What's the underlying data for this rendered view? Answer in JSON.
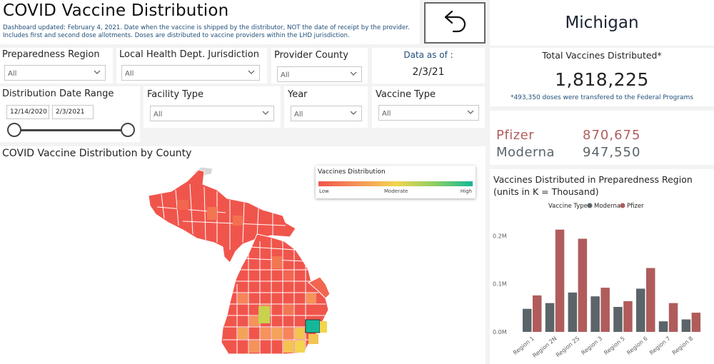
{
  "header": {
    "title": "COVID Vaccine Distribution",
    "subtitle": "Dashboard updated: February 4, 2021. Date when the vaccine is shipped by the distributor, NOT the date of receipt by the provider. Includes first and second dose allotments. Doses are distributed to vaccine providers within the LHD jurisdiction.",
    "state": "Michigan",
    "back_icon": "back-arrow-icon"
  },
  "filters": {
    "preparedness_region": {
      "label": "Preparedness Region",
      "value": "All"
    },
    "lhd_jurisdiction": {
      "label": "Local Health Dept. Jurisdiction",
      "value": "All"
    },
    "provider_county": {
      "label": "Provider County",
      "value": "All"
    },
    "data_as_of": {
      "label": "Data as of :",
      "value": "2/3/21"
    },
    "distribution_date_range": {
      "label": "Distribution Date Range",
      "start": "12/14/2020",
      "end": "2/3/2021"
    },
    "facility_type": {
      "label": "Facility Type",
      "value": "All"
    },
    "year": {
      "label": "Year",
      "value": "All"
    },
    "vaccine_type": {
      "label": "Vaccine Type",
      "value": "All"
    }
  },
  "kpi": {
    "title": "Total Vaccines Distributed*",
    "value": "1,818,225",
    "note": "*493,350 doses were transfered to the Federal Programs"
  },
  "vaccines": [
    {
      "name": "Pfizer",
      "value": "870,675",
      "color": "#b05c5c"
    },
    {
      "name": "Moderna",
      "value": "947,550",
      "color": "#5b6469"
    }
  ],
  "map": {
    "title": "COVID Vaccine Distribution by County",
    "legend_title": "Vaccines Distribution",
    "legend_low": "Low",
    "legend_mid": "Moderate",
    "legend_high": "High",
    "colors": {
      "low": "#f0554c",
      "mid": "#f3d44f",
      "high": "#14b899"
    }
  },
  "bar_chart_title": "Vaccines Distributed in Preparedness Region (units in K = Thousand)",
  "chart_data": {
    "type": "bar",
    "legend_title": "Vaccine Type",
    "legend_position": "top",
    "categories": [
      "Region 1",
      "Region 2N",
      "Region 2S",
      "Region 3",
      "Region 5",
      "Region 6",
      "Region 7",
      "Region 8"
    ],
    "series": [
      {
        "name": "Moderna",
        "color": "#5b6469",
        "values": [
          48,
          60,
          82,
          74,
          52,
          90,
          22,
          26
        ]
      },
      {
        "name": "Pfizer",
        "color": "#b05c5c",
        "values": [
          76,
          213,
          194,
          92,
          64,
          133,
          60,
          40
        ]
      }
    ],
    "yticks": [
      {
        "value": 0,
        "label": "0.0M"
      },
      {
        "value": 100,
        "label": "0.1M"
      },
      {
        "value": 200,
        "label": "0.2M"
      }
    ],
    "ylim": [
      0,
      220
    ],
    "grid": false
  }
}
